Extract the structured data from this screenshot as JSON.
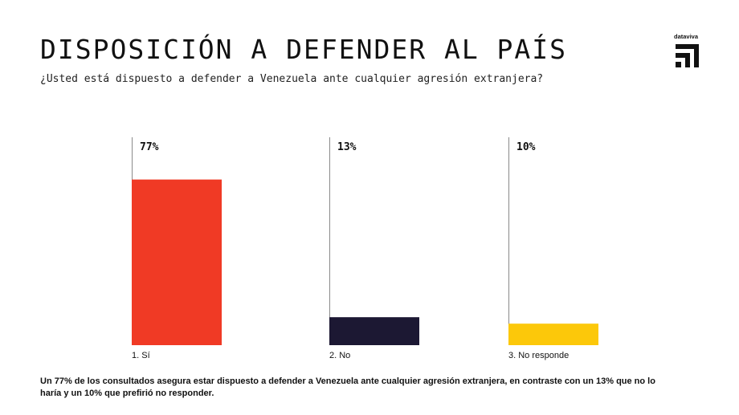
{
  "header": {
    "title": "DISPOSICIÓN A DEFENDER AL PAÍS",
    "subtitle": "¿Usted está dispuesto a defender a Venezuela ante cualquier agresión extranjera?"
  },
  "brand": {
    "name": "dataviva"
  },
  "chart_data": {
    "type": "bar",
    "title": "DISPOSICIÓN A DEFENDER AL PAÍS",
    "subtitle": "¿Usted está dispuesto a defender a Venezuela ante cualquier agresión extranjera?",
    "categories": [
      "1. Sí",
      "2. No",
      "3. No responde"
    ],
    "values": [
      77,
      13,
      10
    ],
    "value_labels": [
      "77%",
      "13%",
      "10%"
    ],
    "colors": [
      "#f03a25",
      "#1c1833",
      "#fcc80a"
    ],
    "unit": "%",
    "ylim": [
      0,
      100
    ],
    "xlabel": "",
    "ylabel": "",
    "grid": false,
    "legend": "none"
  },
  "footnote": "Un 77% de los consultados asegura estar dispuesto a defender a Venezuela ante cualquier agresión extranjera, en contraste con un 13% que no lo haría y un 10% que prefirió no responder."
}
